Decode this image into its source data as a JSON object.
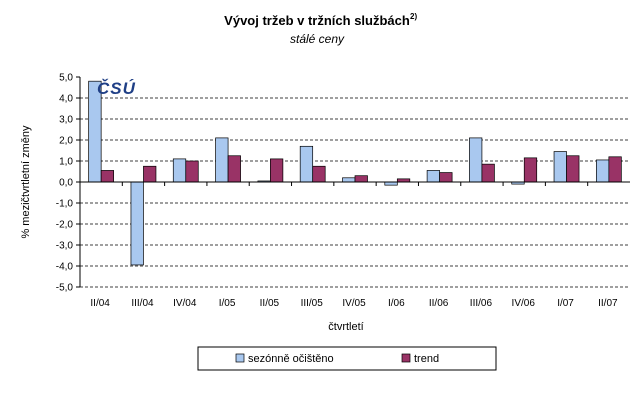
{
  "logo": {
    "text": "ČSÚ",
    "color": "#1f3f86"
  },
  "chart_data": {
    "type": "bar",
    "title": "Vývoj tržeb v tržních službách",
    "title_superscript": "2)",
    "subtitle": "stálé ceny",
    "xlabel": "čtvrtletí",
    "ylabel": "% mezičtvrtletní změny",
    "ylim": [
      -5.0,
      5.0
    ],
    "yticks": [
      "5,0",
      "4,0",
      "3,0",
      "2,0",
      "1,0",
      "0,0",
      "-1,0",
      "-2,0",
      "-3,0",
      "-4,0",
      "-5,0"
    ],
    "grid": true,
    "legend_position": "bottom",
    "categories": [
      "II/04",
      "III/04",
      "IV/04",
      "I/05",
      "II/05",
      "III/05",
      "IV/05",
      "I/06",
      "II/06",
      "III/06",
      "IV/06",
      "I/07",
      "II/07"
    ],
    "series": [
      {
        "name": "sezónně očištěno",
        "color": "#a9c8ef",
        "values": [
          4.8,
          -3.95,
          1.1,
          2.1,
          0.05,
          1.7,
          0.2,
          -0.15,
          0.55,
          2.1,
          -0.1,
          1.45,
          1.05
        ]
      },
      {
        "name": "trend",
        "color": "#993366",
        "values": [
          0.55,
          0.75,
          1.0,
          1.25,
          1.1,
          0.75,
          0.3,
          0.15,
          0.45,
          0.85,
          1.15,
          1.25,
          1.2
        ]
      }
    ]
  }
}
